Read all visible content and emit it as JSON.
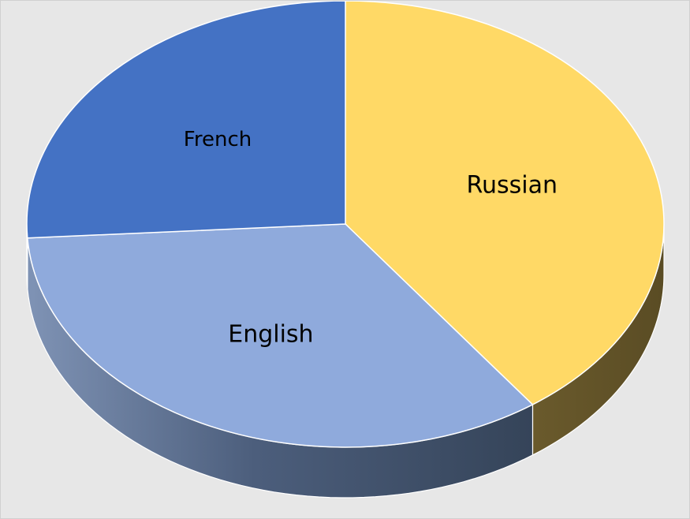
{
  "chart_data": {
    "type": "pie",
    "style": "3d",
    "title": "",
    "categories": [
      "Russian",
      "English",
      "French"
    ],
    "values": [
      40,
      34,
      26
    ],
    "colors": {
      "Russian": "#FFD966",
      "English": "#8FAADC",
      "French": "#4472C4"
    },
    "legend": "none",
    "data_labels": "category-name-inside"
  }
}
